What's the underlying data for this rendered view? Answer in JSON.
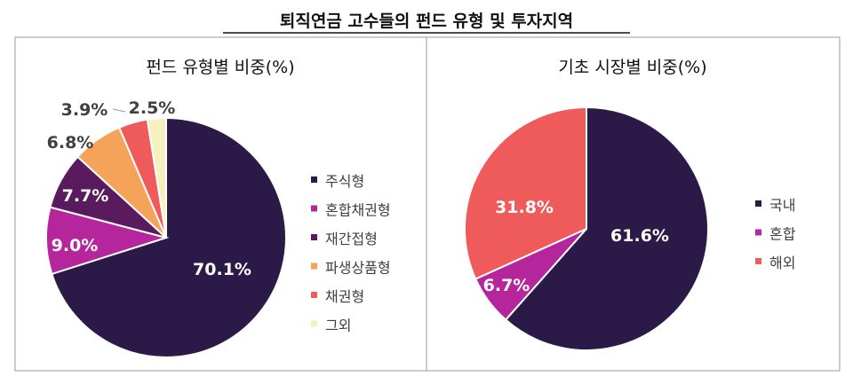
{
  "title": "퇴직연금 고수들의 펀드 유형 및 투자지역",
  "chart_data": [
    {
      "type": "pie",
      "title": "펀드 유형별 비중(%)",
      "legend_position": "right",
      "categories": [
        "주식형",
        "혼합채권형",
        "재간접형",
        "파생상품형",
        "채권형",
        "그외"
      ],
      "values": [
        70.1,
        9.0,
        7.7,
        6.8,
        3.9,
        2.5
      ],
      "data_labels": [
        "70.1%",
        "9.0%",
        "7.7%",
        "6.8%",
        "3.9%",
        "2.5%"
      ],
      "colors": [
        "#2b1a47",
        "#b5259b",
        "#5a1a5e",
        "#f6a35a",
        "#ef5a5a",
        "#f6efc0"
      ]
    },
    {
      "type": "pie",
      "title": "기초 시장별 비중(%)",
      "legend_position": "right",
      "categories": [
        "국내",
        "혼합",
        "해외"
      ],
      "values": [
        61.6,
        6.7,
        31.8
      ],
      "data_labels": [
        "61.6%",
        "6.7%",
        "31.8%"
      ],
      "colors": [
        "#2b1a47",
        "#b5259b",
        "#ef5a5a"
      ]
    }
  ]
}
